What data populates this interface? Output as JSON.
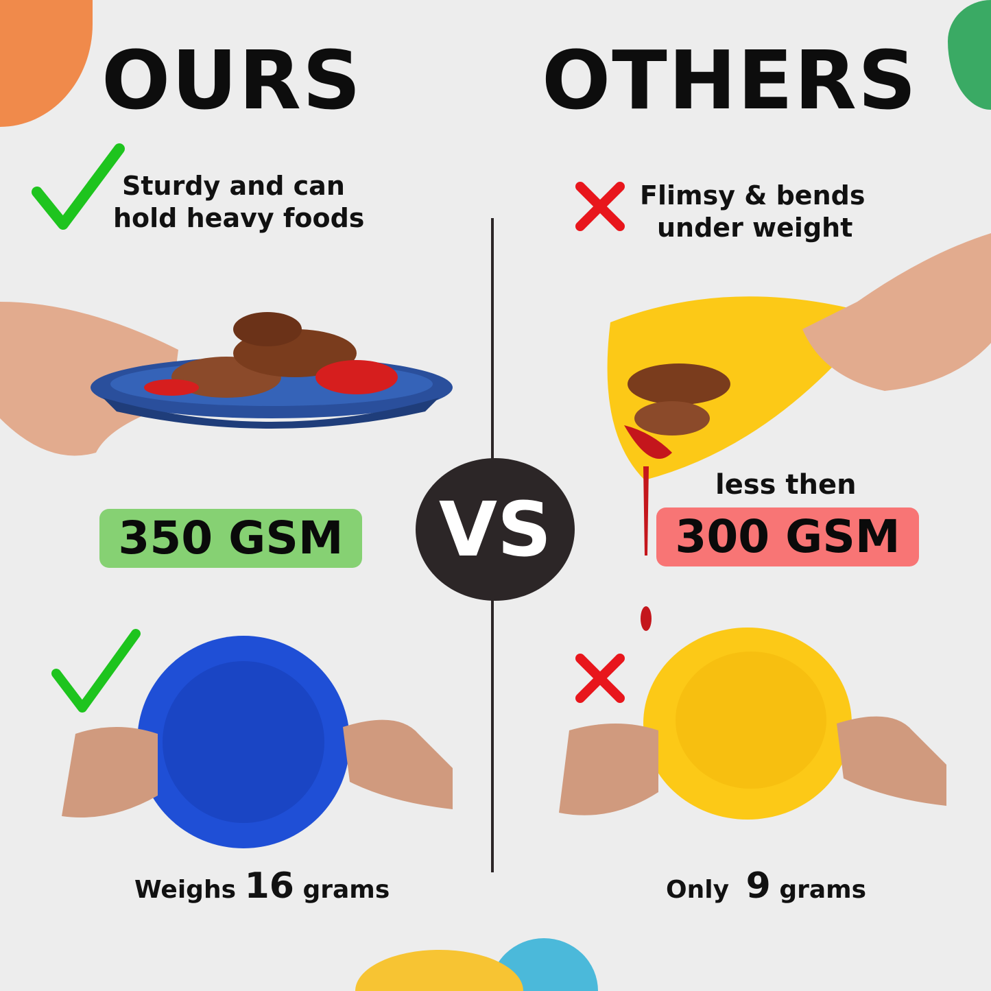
{
  "left": {
    "title": "OURS",
    "claim_line1": "Sturdy and can",
    "claim_line2": "hold heavy foods",
    "badge": "350 GSM",
    "weight_prefix": "Weighs",
    "weight_value": "16",
    "weight_suffix": "grams",
    "plate_color": "#1f4fd6",
    "badge_color": "#86d173",
    "mark_icon": "check-icon"
  },
  "right": {
    "title": "OTHERS",
    "claim_line1": "Flimsy & bends",
    "claim_line2": "under weight",
    "badge_prefix": "less then",
    "badge": "300 GSM",
    "weight_prefix": "Only",
    "weight_value": "9",
    "weight_suffix": "grams",
    "plate_color": "#fcc917",
    "badge_color": "#f87575",
    "mark_icon": "x-icon"
  },
  "vs_label": "VS",
  "colors": {
    "background": "#ededed",
    "orange": "#f08a4b",
    "green": "#3aaa64",
    "yellow": "#f7c433",
    "blue": "#4bb9da",
    "check": "#1ec41e",
    "cross": "#e8161c"
  }
}
